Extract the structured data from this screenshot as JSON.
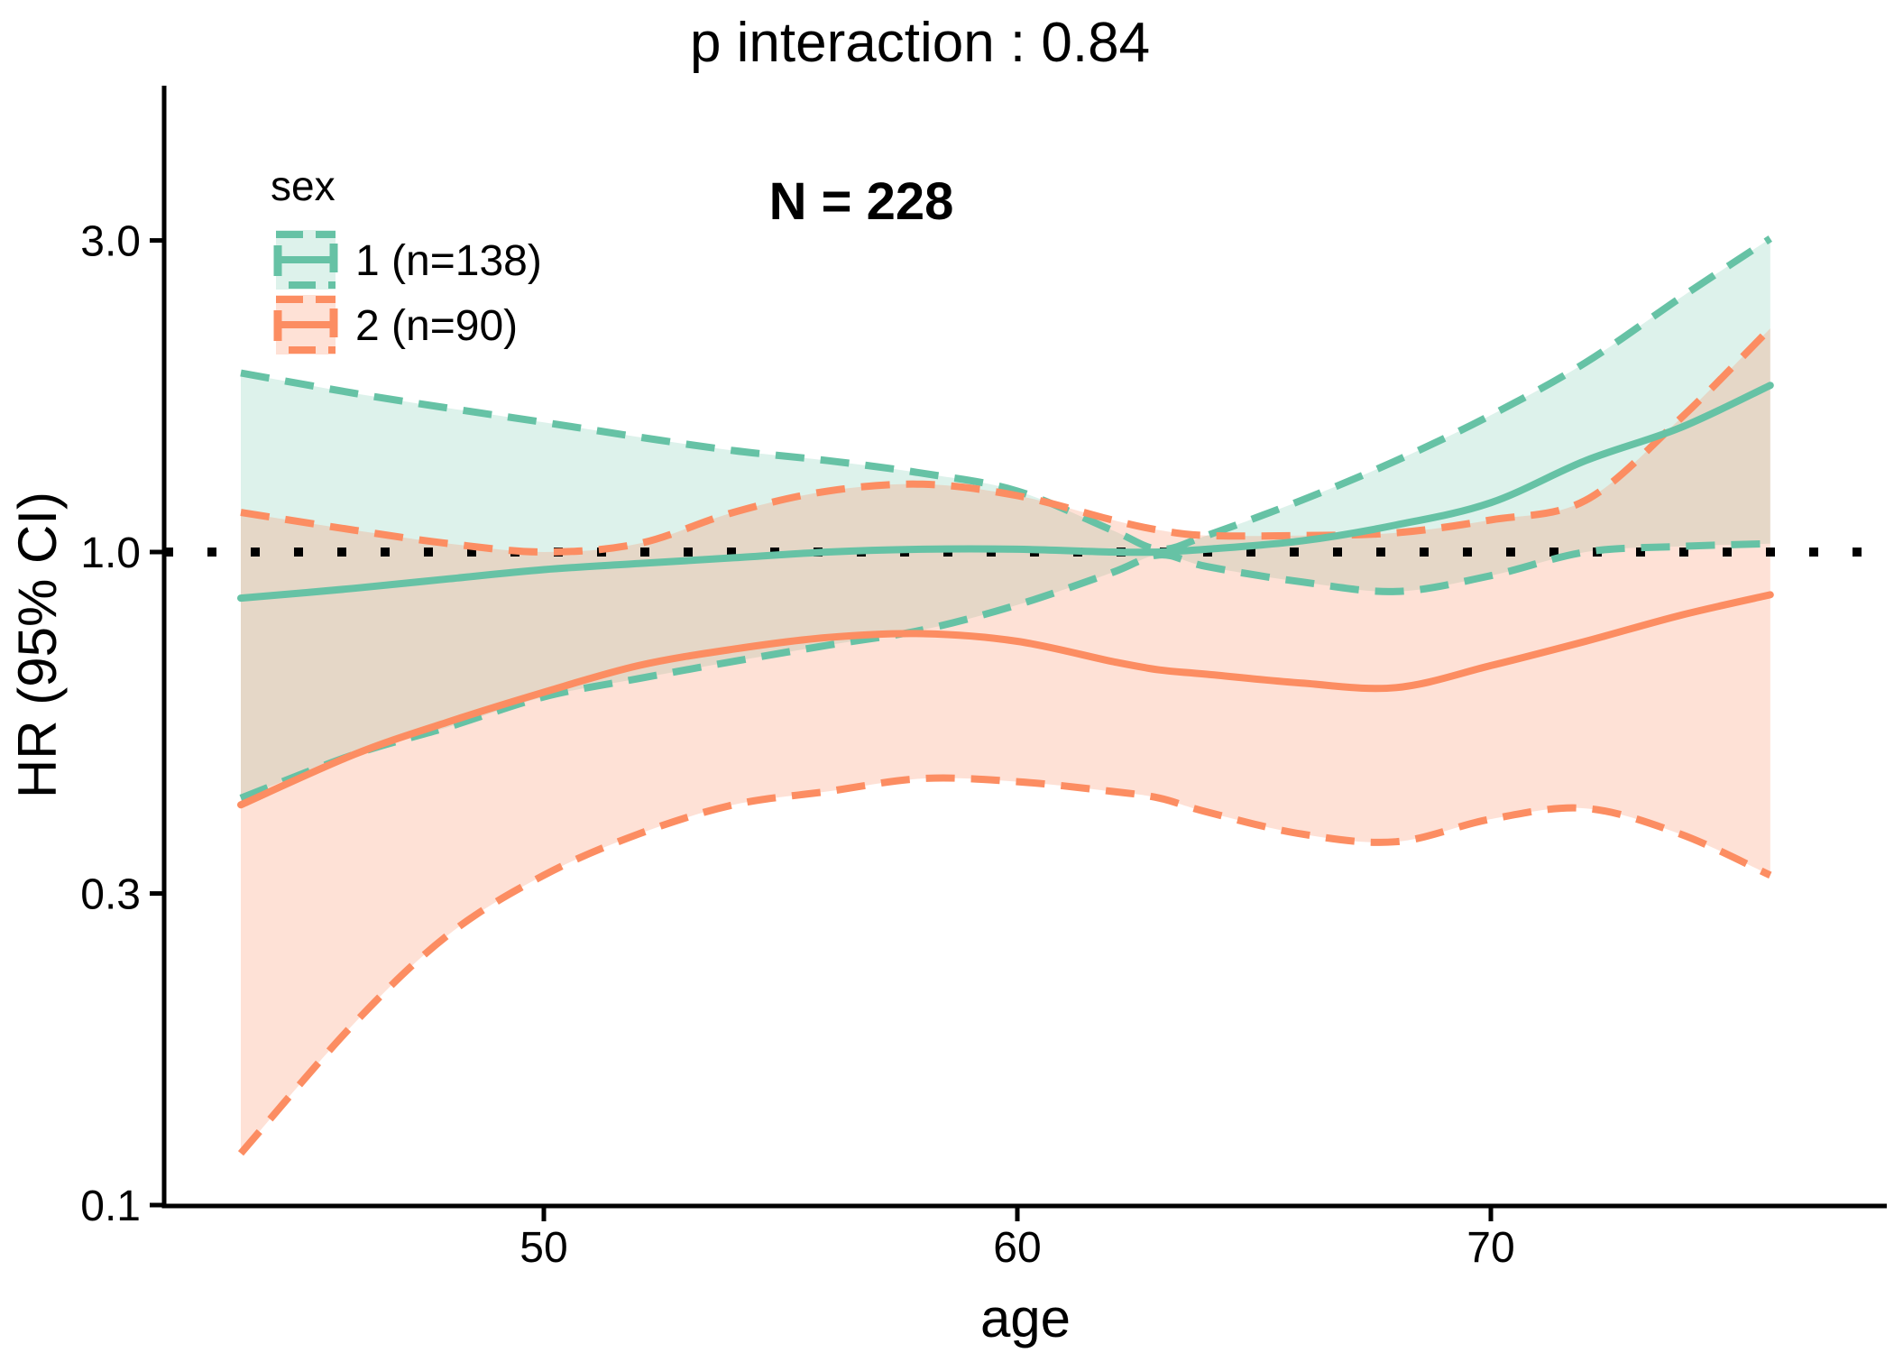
{
  "figure": {
    "title": "p interaction : 0.84",
    "annotation": "N = 228"
  },
  "chart_data": {
    "type": "line",
    "title": "p interaction : 0.84",
    "annotation": "N = 228",
    "xlabel": "age",
    "ylabel": "HR (95% CI)",
    "y_scale": "log10",
    "x_ticks": [
      {
        "v": 50,
        "label": "50"
      },
      {
        "v": 60,
        "label": "60"
      },
      {
        "v": 70,
        "label": "70"
      }
    ],
    "y_ticks": [
      {
        "v": 3.0,
        "label": "3.0"
      },
      {
        "v": 1.0,
        "label": "1.0"
      },
      {
        "v": 0.3,
        "label": "0.3"
      },
      {
        "v": 0.1,
        "label": "0.1"
      }
    ],
    "reference_line": 1.0,
    "x_data_range": [
      43.6,
      75.9
    ],
    "legend": {
      "title": "sex",
      "entries": [
        {
          "label": "1 (n=138)",
          "color": "#66C2A5",
          "fill": "rgba(102,194,165,0.22)"
        },
        {
          "label": "2 (n=90)",
          "color": "#FC8D62",
          "fill": "rgba(252,141,98,0.26)"
        }
      ]
    },
    "x": [
      43.6,
      46,
      48,
      50,
      52,
      54,
      56,
      58,
      60,
      62,
      63,
      64,
      66,
      68,
      70,
      72,
      74,
      75.9
    ],
    "series": [
      {
        "name": "sex1_hr",
        "group": "1 (n=138)",
        "style": "solid",
        "color": "#66C2A5",
        "values": [
          0.85,
          0.88,
          0.91,
          0.94,
          0.96,
          0.98,
          1.0,
          1.01,
          1.01,
          1.0,
          1.0,
          1.01,
          1.04,
          1.1,
          1.19,
          1.38,
          1.55,
          1.8
        ]
      },
      {
        "name": "sex1_ci_upper",
        "group": "1 (n=138)",
        "style": "dashed",
        "color": "#66C2A5",
        "values": [
          1.88,
          1.75,
          1.66,
          1.58,
          1.5,
          1.43,
          1.38,
          1.32,
          1.24,
          1.08,
          1.01,
          1.06,
          1.2,
          1.38,
          1.62,
          1.95,
          2.45,
          3.02
        ]
      },
      {
        "name": "sex1_ci_lower",
        "group": "1 (n=138)",
        "style": "dashed",
        "color": "#66C2A5",
        "values": [
          0.42,
          0.49,
          0.54,
          0.6,
          0.64,
          0.68,
          0.72,
          0.76,
          0.83,
          0.93,
          0.99,
          0.95,
          0.9,
          0.87,
          0.92,
          1.0,
          1.02,
          1.03
        ]
      },
      {
        "name": "sex2_hr",
        "group": "2 (n=90)",
        "style": "solid",
        "color": "#FC8D62",
        "values": [
          0.41,
          0.49,
          0.55,
          0.61,
          0.67,
          0.71,
          0.74,
          0.75,
          0.73,
          0.68,
          0.66,
          0.65,
          0.63,
          0.62,
          0.67,
          0.73,
          0.8,
          0.86
        ]
      },
      {
        "name": "sex2_ci_upper",
        "group": "2 (n=90)",
        "style": "dashed",
        "color": "#FC8D62",
        "values": [
          1.15,
          1.08,
          1.03,
          1.0,
          1.03,
          1.15,
          1.24,
          1.27,
          1.22,
          1.12,
          1.08,
          1.06,
          1.06,
          1.07,
          1.12,
          1.2,
          1.6,
          2.2
        ]
      },
      {
        "name": "sex2_ci_lower",
        "group": "2 (n=90)",
        "style": "dashed",
        "color": "#FC8D62",
        "values": [
          0.12,
          0.19,
          0.26,
          0.32,
          0.37,
          0.41,
          0.43,
          0.45,
          0.445,
          0.43,
          0.42,
          0.4,
          0.37,
          0.36,
          0.39,
          0.405,
          0.37,
          0.32
        ]
      }
    ],
    "ribbons": [
      {
        "name": "sex1_ci_band",
        "upper": "sex1_ci_upper",
        "lower": "sex1_ci_lower",
        "fill": "rgba(102,194,165,0.22)"
      },
      {
        "name": "sex2_ci_band",
        "upper": "sex2_ci_upper",
        "lower": "sex2_ci_lower",
        "fill": "rgba(252,141,98,0.26)"
      }
    ],
    "colors": {
      "sex1": "#66C2A5",
      "sex2": "#FC8D62",
      "reference": "#000000",
      "axis": "#000000"
    }
  }
}
